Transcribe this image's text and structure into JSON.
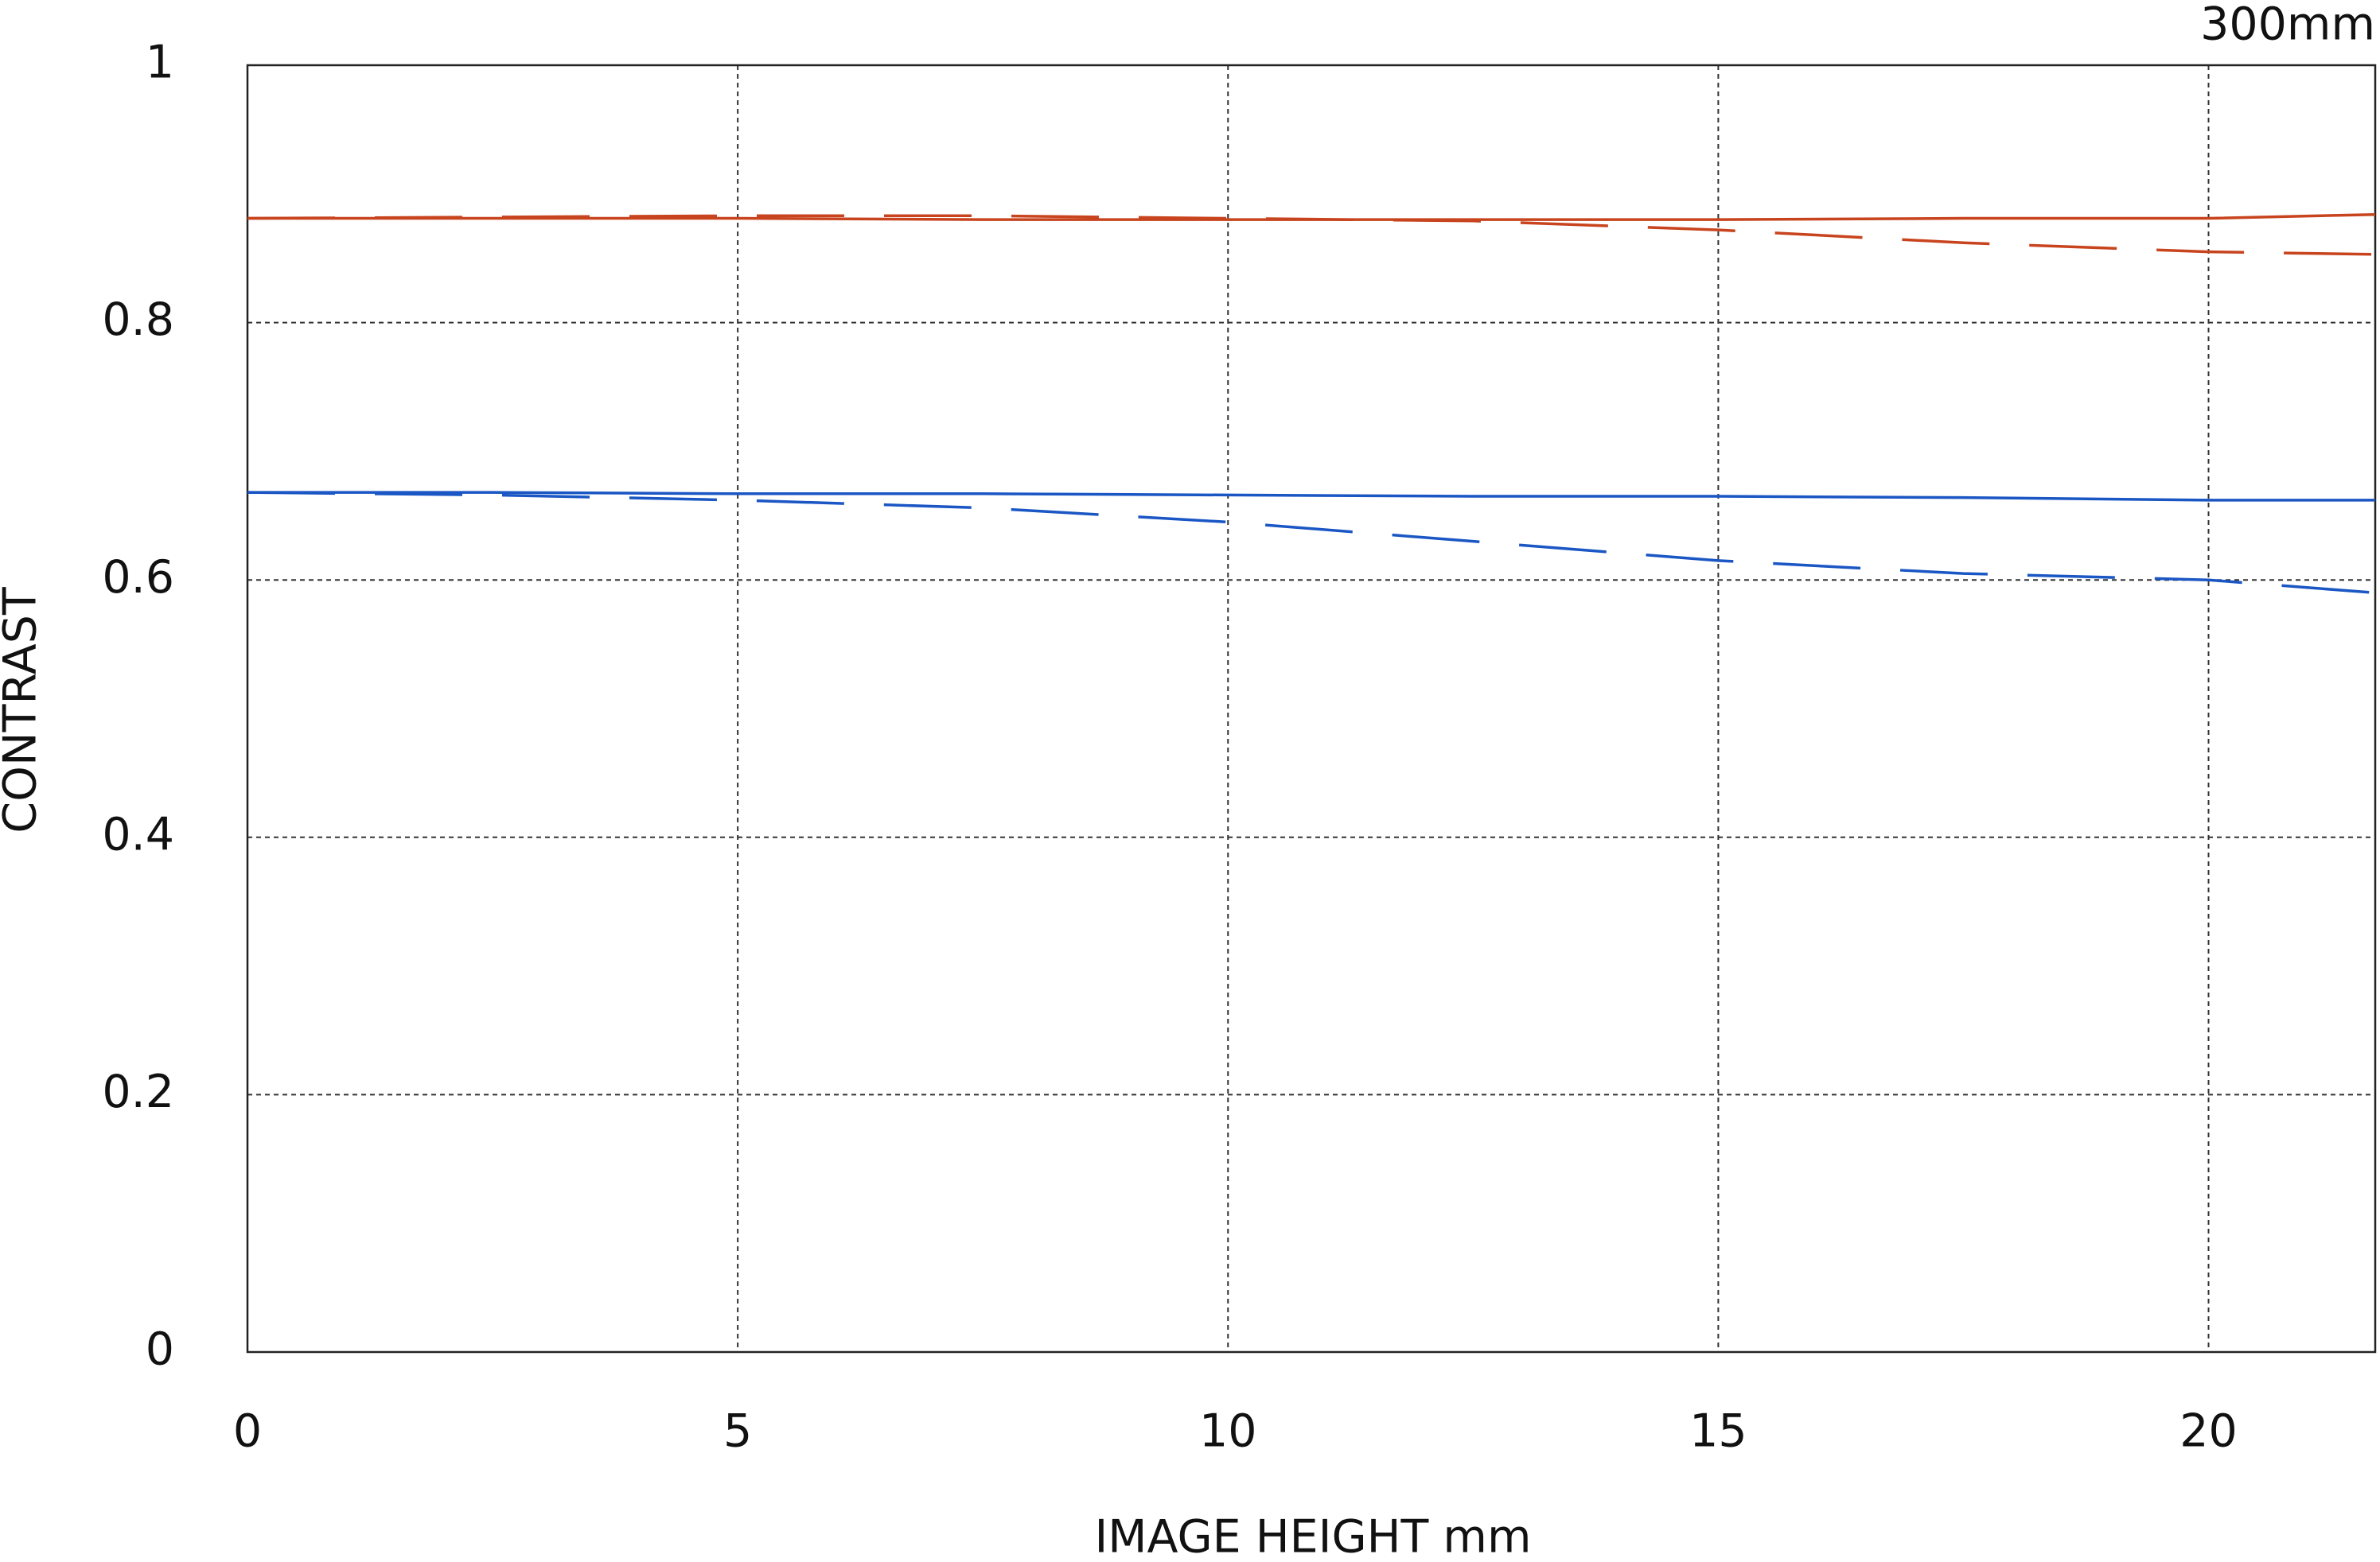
{
  "chart_data": {
    "type": "line",
    "title": "300mm",
    "xlabel": "IMAGE HEIGHT  mm",
    "ylabel": "CONTRAST",
    "x": [
      0,
      2.5,
      5,
      7.5,
      10,
      12.5,
      15,
      17.5,
      20,
      21.7
    ],
    "series": [
      {
        "color": "#c8441e",
        "dashed": false,
        "values": [
          0.881,
          0.881,
          0.881,
          0.88,
          0.88,
          0.88,
          0.88,
          0.881,
          0.881,
          0.884
        ]
      },
      {
        "color": "#c8441e",
        "dashed": true,
        "values": [
          0.881,
          0.882,
          0.883,
          0.883,
          0.881,
          0.879,
          0.872,
          0.862,
          0.855,
          0.853
        ]
      },
      {
        "color": "#1a56c4",
        "dashed": false,
        "values": [
          0.668,
          0.668,
          0.667,
          0.667,
          0.666,
          0.665,
          0.665,
          0.664,
          0.662,
          0.662
        ]
      },
      {
        "color": "#1a56c4",
        "dashed": true,
        "values": [
          0.668,
          0.666,
          0.662,
          0.656,
          0.645,
          0.63,
          0.615,
          0.605,
          0.6,
          0.59
        ]
      }
    ],
    "xlim": [
      0,
      21.7
    ],
    "xticks": [
      0,
      5,
      10,
      15,
      20
    ],
    "ylim": [
      0,
      1
    ],
    "yticks": [
      0,
      0.2,
      0.4,
      0.6,
      0.8,
      1
    ],
    "grid": true
  }
}
